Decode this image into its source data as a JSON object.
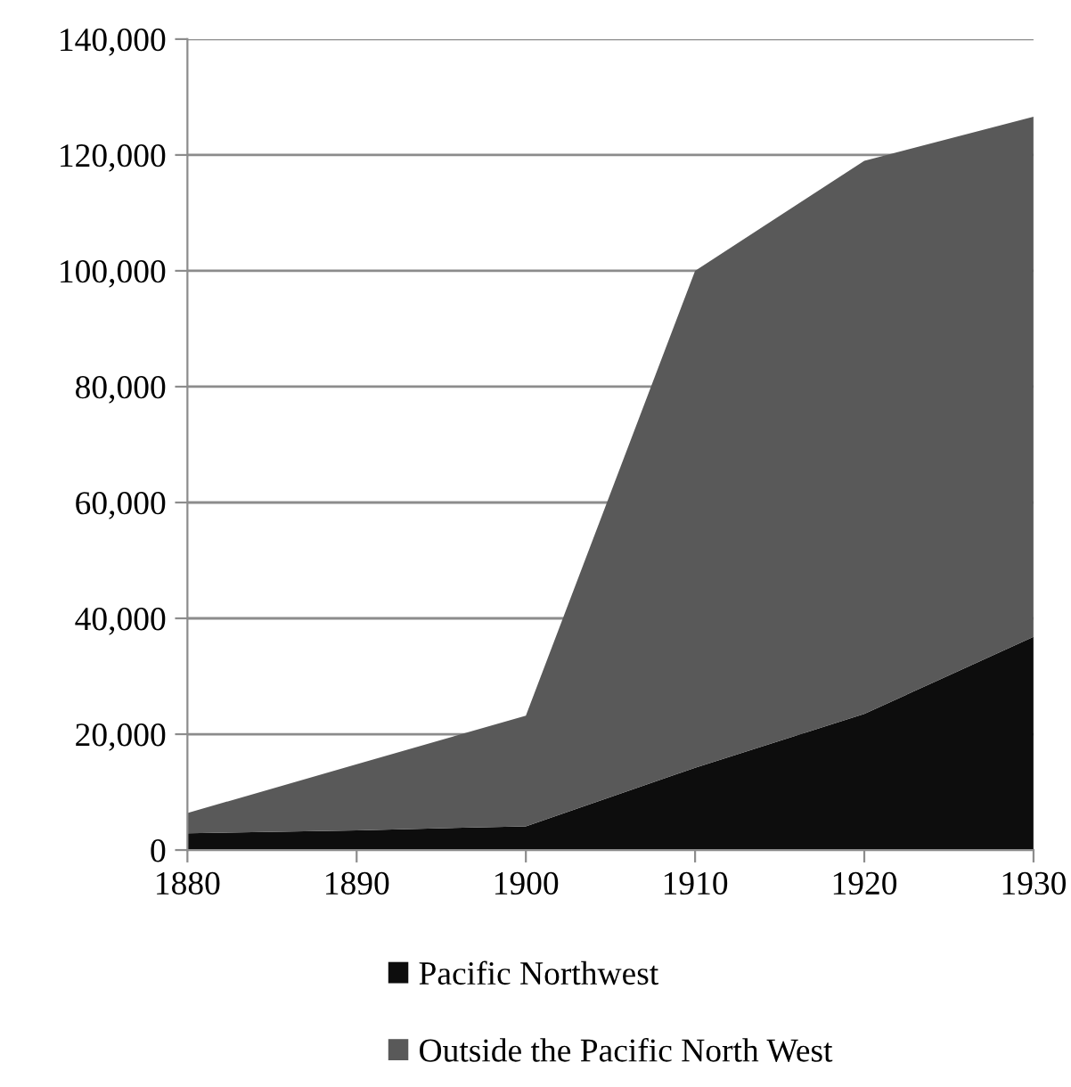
{
  "chart_data": {
    "type": "area",
    "stacked": true,
    "x": [
      1880,
      1890,
      1900,
      1910,
      1920,
      1930
    ],
    "series": [
      {
        "name": "Pacific Northwest",
        "color": "#0d0d0d",
        "values": [
          2900,
          3400,
          4100,
          14200,
          23500,
          36800
        ]
      },
      {
        "name": "Outside the Pacific North West",
        "color": "#595959",
        "values": [
          3500,
          11400,
          19100,
          85800,
          95500,
          89800
        ]
      }
    ],
    "xlim": [
      1880,
      1930
    ],
    "xticks": [
      1880,
      1890,
      1900,
      1910,
      1920,
      1930
    ],
    "ylim": [
      0,
      140000
    ],
    "yticks": [
      {
        "value": 0,
        "label": "0"
      },
      {
        "value": 20000,
        "label": "20,000"
      },
      {
        "value": 40000,
        "label": "40,000"
      },
      {
        "value": 60000,
        "label": "60,000"
      },
      {
        "value": 80000,
        "label": "80,000"
      },
      {
        "value": 100000,
        "label": "100,000"
      },
      {
        "value": 120000,
        "label": "120,000"
      },
      {
        "value": 140000,
        "label": "140,000"
      }
    ],
    "grid": "y",
    "legend": "bottom"
  }
}
